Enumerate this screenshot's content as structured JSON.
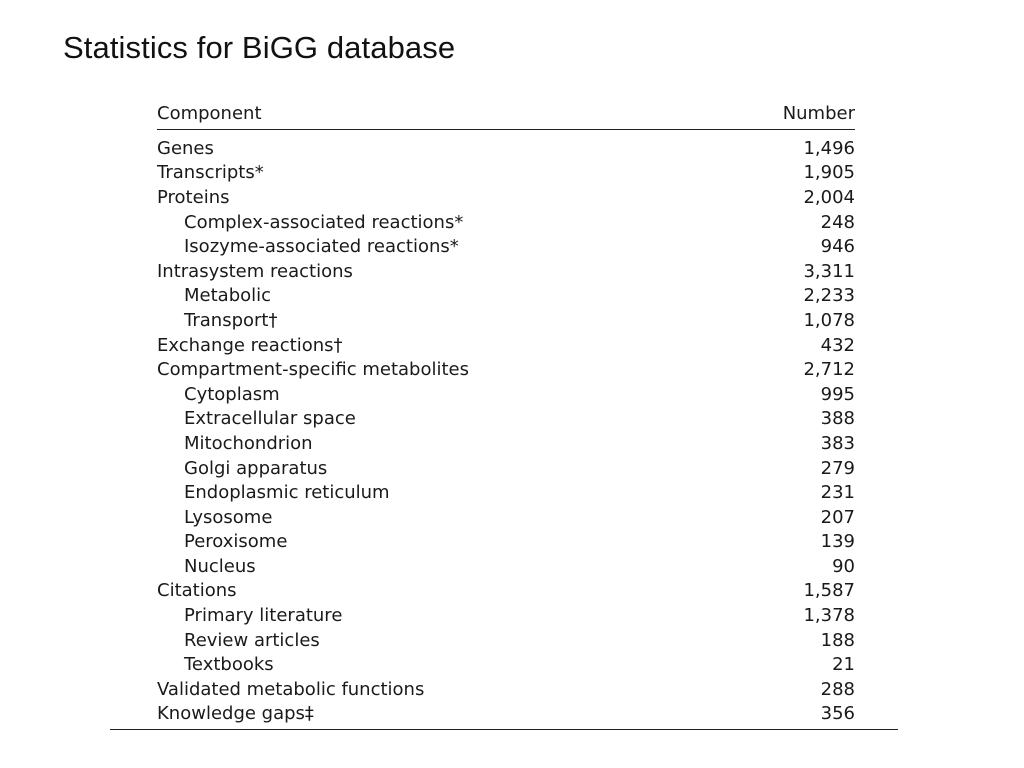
{
  "title": "Statistics for BiGG database",
  "table": {
    "headers": {
      "component": "Component",
      "number": "Number"
    },
    "rows": [
      {
        "label": "Genes",
        "value": "1,496",
        "indent": false
      },
      {
        "label": "Transcripts*",
        "value": "1,905",
        "indent": false
      },
      {
        "label": "Proteins",
        "value": "2,004",
        "indent": false
      },
      {
        "label": "Complex-associated reactions*",
        "value": "248",
        "indent": true
      },
      {
        "label": "Isozyme-associated reactions*",
        "value": "946",
        "indent": true
      },
      {
        "label": "Intrasystem reactions",
        "value": "3,311",
        "indent": false
      },
      {
        "label": "Metabolic",
        "value": "2,233",
        "indent": true
      },
      {
        "label": "Transport†",
        "value": "1,078",
        "indent": true
      },
      {
        "label": "Exchange reactions†",
        "value": "432",
        "indent": false
      },
      {
        "label": "Compartment-specific metabolites",
        "value": "2,712",
        "indent": false
      },
      {
        "label": "Cytoplasm",
        "value": "995",
        "indent": true
      },
      {
        "label": "Extracellular space",
        "value": "388",
        "indent": true
      },
      {
        "label": "Mitochondrion",
        "value": "383",
        "indent": true
      },
      {
        "label": "Golgi apparatus",
        "value": "279",
        "indent": true
      },
      {
        "label": "Endoplasmic reticulum",
        "value": "231",
        "indent": true
      },
      {
        "label": "Lysosome",
        "value": "207",
        "indent": true
      },
      {
        "label": "Peroxisome",
        "value": "139",
        "indent": true
      },
      {
        "label": "Nucleus",
        "value": "90",
        "indent": true
      },
      {
        "label": "Citations",
        "value": "1,587",
        "indent": false
      },
      {
        "label": "Primary literature",
        "value": "1,378",
        "indent": true
      },
      {
        "label": "Review articles",
        "value": "188",
        "indent": true
      },
      {
        "label": "Textbooks",
        "value": "21",
        "indent": true
      },
      {
        "label": "Validated metabolic functions",
        "value": "288",
        "indent": false
      },
      {
        "label": "Knowledge gaps‡",
        "value": "356",
        "indent": false
      }
    ]
  }
}
